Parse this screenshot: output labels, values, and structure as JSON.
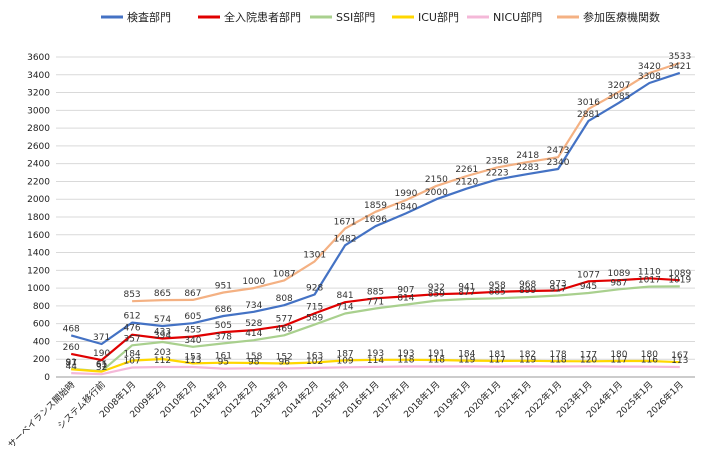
{
  "chart_data": {
    "type": "line",
    "title": "",
    "xlabel": "",
    "ylabel": "",
    "ylim": [
      0,
      3600
    ],
    "ytick_step": 200,
    "grid": true,
    "legend_position": "top",
    "categories": [
      "サーベイランス開始時",
      "システム移行前",
      "2008年1月",
      "2009年2月",
      "2010年2月",
      "2011年2月",
      "2012年2月",
      "2013年2月",
      "2014年2月",
      "2015年1月",
      "2016年1月",
      "2017年1月",
      "2018年1月",
      "2019年1月",
      "2020年1月",
      "2021年1月",
      "2022年1月",
      "2023年1月",
      "2024年1月",
      "2025年1月",
      "2026年1月"
    ],
    "series": [
      {
        "name": "検査部門",
        "color": "#4472C4",
        "values": [
          468,
          371,
          612,
          574,
          605,
          686,
          734,
          808,
          928,
          1482,
          1696,
          1840,
          2000,
          2120,
          2223,
          2283,
          2340,
          2881,
          3085,
          3308,
          3421
        ]
      },
      {
        "name": "全入院患者部門",
        "color": "#E00000",
        "values": [
          260,
          190,
          476,
          433,
          455,
          505,
          528,
          577,
          715,
          841,
          885,
          907,
          932,
          941,
          958,
          968,
          973,
          1077,
          1089,
          1110,
          1089
        ]
      },
      {
        "name": "SSI部門",
        "color": "#A9D08E",
        "values": [
          91,
          65,
          357,
          394,
          340,
          378,
          414,
          469,
          589,
          714,
          771,
          814,
          859,
          877,
          885,
          899,
          917,
          945,
          987,
          1017,
          1019
        ]
      },
      {
        "name": "ICU部門",
        "color": "#FFD700",
        "values": [
          87,
          61,
          184,
          203,
          153,
          161,
          158,
          152,
          163,
          187,
          193,
          193,
          191,
          184,
          181,
          182,
          178,
          177,
          180,
          180,
          167
        ]
      },
      {
        "name": "NICU部門",
        "color": "#F4B8D8",
        "values": [
          44,
          32,
          107,
          112,
          113,
          95,
          98,
          96,
          102,
          109,
          114,
          118,
          118,
          119,
          117,
          119,
          118,
          120,
          117,
          116,
          113
        ]
      },
      {
        "name": "参加医療機関数",
        "color": "#F4B183",
        "values": [
          null,
          null,
          853,
          865,
          867,
          951,
          1000,
          1087,
          1301,
          1671,
          1859,
          1990,
          2150,
          2261,
          2358,
          2418,
          2473,
          3016,
          3207,
          3420,
          3533
        ]
      }
    ]
  }
}
